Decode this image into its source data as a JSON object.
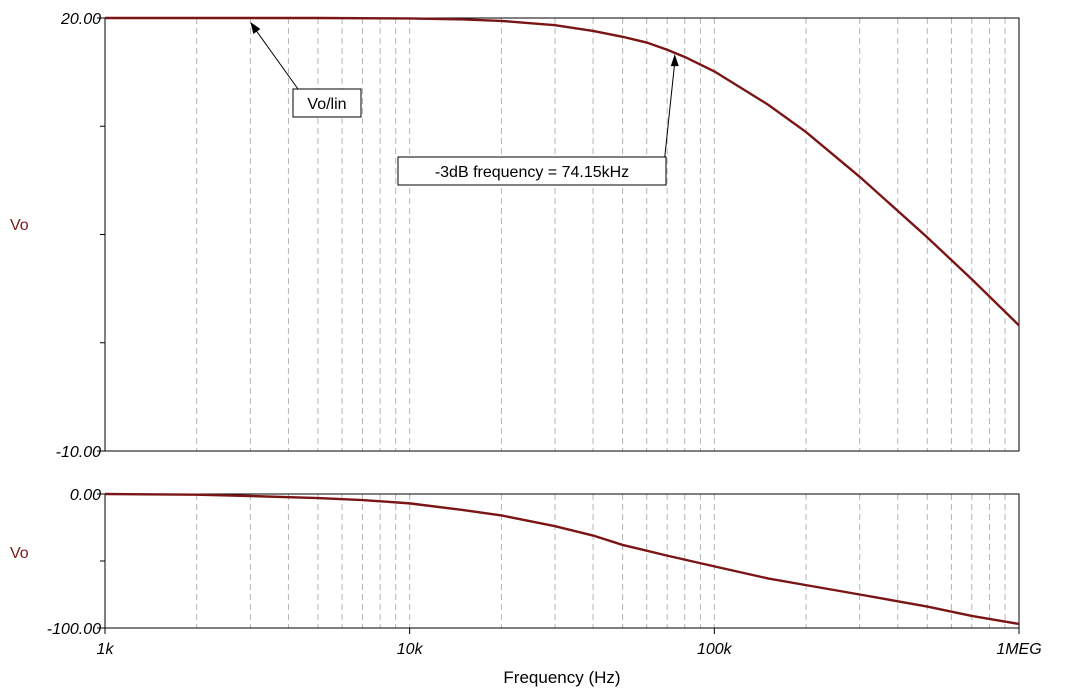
{
  "chart_data": [
    {
      "type": "line",
      "xscale": "log",
      "xlim": [
        1000,
        1000000
      ],
      "ylim": [
        -10,
        20
      ],
      "yticks": [
        {
          "value": 20,
          "label": "20.00"
        },
        {
          "value": -10,
          "label": "-10.00"
        }
      ],
      "ylabel": "Vo",
      "colors": {
        "series": "#7b1515",
        "grid": "#b4b4b4"
      },
      "grid": true,
      "series": [
        {
          "x": [
            1000,
            2000,
            5000,
            8000,
            10000,
            15000,
            20000,
            30000,
            40000,
            50000,
            60000,
            70000,
            80000,
            100000,
            150000,
            200000,
            300000,
            500000,
            700000,
            1000000
          ],
          "y": [
            20,
            20,
            20,
            19.98,
            19.97,
            19.9,
            19.8,
            19.5,
            19.1,
            18.7,
            18.3,
            17.8,
            17.3,
            16.3,
            14.0,
            12.1,
            9.0,
            4.8,
            1.9,
            -1.3
          ]
        }
      ],
      "annotations": [
        {
          "text": "Vo/lin",
          "x": 3000,
          "y": 20
        },
        {
          "text": "-3dB frequency = 74.15kHz",
          "x": 74150,
          "y": 17.5
        }
      ]
    },
    {
      "type": "line",
      "xscale": "log",
      "xlim": [
        1000,
        1000000
      ],
      "ylim": [
        -100,
        0
      ],
      "yticks": [
        {
          "value": 0,
          "label": "0.00"
        },
        {
          "value": -100,
          "label": "-100.00"
        }
      ],
      "ylabel": "Vo",
      "xlabel": "Frequency (Hz)",
      "xticks": [
        {
          "value": 1000,
          "label": "1k"
        },
        {
          "value": 10000,
          "label": "10k"
        },
        {
          "value": 100000,
          "label": "100k"
        },
        {
          "value": 1000000,
          "label": "1MEG"
        }
      ],
      "colors": {
        "series": "#7b1515",
        "grid": "#b4b4b4"
      },
      "grid": true,
      "series": [
        {
          "x": [
            1000,
            2000,
            3000,
            5000,
            7000,
            10000,
            15000,
            20000,
            30000,
            40000,
            50000,
            70000,
            100000,
            150000,
            200000,
            300000,
            500000,
            700000,
            1000000
          ],
          "y": [
            0,
            -0.5,
            -1.5,
            -3,
            -4.5,
            -7,
            -12,
            -16,
            -24,
            -31,
            -38,
            -46,
            -54,
            -63,
            -68,
            -75,
            -84,
            -91,
            -97
          ]
        }
      ]
    }
  ]
}
